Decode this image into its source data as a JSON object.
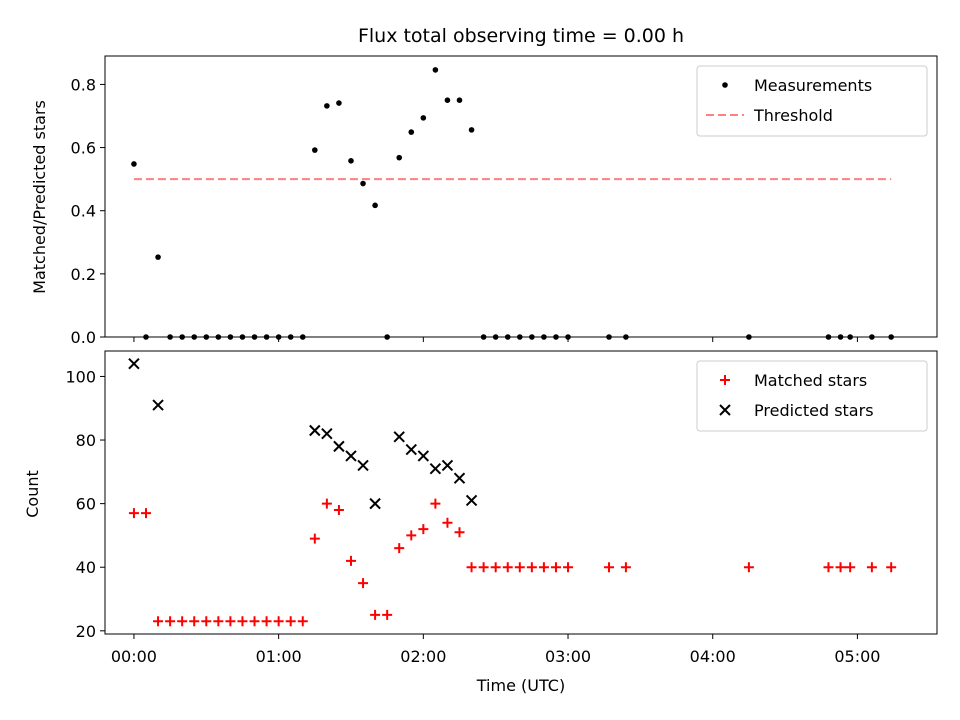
{
  "chart_data": [
    {
      "type": "scatter",
      "title": "Flux total observing time = 0.00 h",
      "xlabel": "",
      "ylabel": "Matched/Predicted stars",
      "ylim": [
        0,
        0.89
      ],
      "yticks": [
        0.0,
        0.2,
        0.4,
        0.6,
        0.8
      ],
      "ytick_labels": [
        "0.0",
        "0.2",
        "0.4",
        "0.6",
        "0.8"
      ],
      "legend_position": "top-right",
      "series": [
        {
          "name": "Measurements",
          "marker": "dot",
          "color": "#000000",
          "x": [
            "00:00",
            "00:05",
            "00:10",
            "00:15",
            "00:20",
            "00:25",
            "00:30",
            "00:35",
            "00:40",
            "00:45",
            "00:50",
            "00:55",
            "01:00",
            "01:05",
            "01:10",
            "01:15",
            "01:20",
            "01:25",
            "01:30",
            "01:35",
            "01:40",
            "01:45",
            "01:50",
            "01:55",
            "02:00",
            "02:05",
            "02:10",
            "02:15",
            "02:20",
            "02:25",
            "02:30",
            "02:35",
            "02:40",
            "02:45",
            "02:50",
            "02:55",
            "03:00",
            "03:17",
            "03:24",
            "04:15",
            "04:48",
            "04:53",
            "04:57",
            "05:06",
            "05:14"
          ],
          "values": [
            0.548,
            0.0,
            0.253,
            0.0,
            0.0,
            0.0,
            0.0,
            0.0,
            0.0,
            0.0,
            0.0,
            0.0,
            0.0,
            0.0,
            0.0,
            0.592,
            0.732,
            0.741,
            0.558,
            0.486,
            0.417,
            0.0,
            0.568,
            0.649,
            0.694,
            0.846,
            0.75,
            0.75,
            0.656,
            0.0,
            0.0,
            0.0,
            0.0,
            0.0,
            0.0,
            0.0,
            0.0,
            0.0,
            0.0,
            0.0,
            0.0,
            0.0,
            0.0,
            0.0,
            0.0
          ]
        },
        {
          "name": "Threshold",
          "style": "dashed-line",
          "color": "#ff8080",
          "x": [
            "00:00",
            "05:14"
          ],
          "values": [
            0.5,
            0.5
          ]
        }
      ]
    },
    {
      "type": "scatter",
      "title": "",
      "xlabel": "Time (UTC)",
      "ylabel": "Count",
      "ylim": [
        19,
        108
      ],
      "yticks": [
        20,
        40,
        60,
        80,
        100
      ],
      "ytick_labels": [
        "20",
        "40",
        "60",
        "80",
        "100"
      ],
      "xticks": [
        "00:00",
        "01:00",
        "02:00",
        "03:00",
        "04:00",
        "05:00"
      ],
      "legend_position": "top-right",
      "series": [
        {
          "name": "Matched stars",
          "marker": "plus",
          "color": "#ff0000",
          "x": [
            "00:00",
            "00:05",
            "00:10",
            "00:15",
            "00:20",
            "00:25",
            "00:30",
            "00:35",
            "00:40",
            "00:45",
            "00:50",
            "00:55",
            "01:00",
            "01:05",
            "01:10",
            "01:15",
            "01:20",
            "01:25",
            "01:30",
            "01:35",
            "01:40",
            "01:45",
            "01:50",
            "01:55",
            "02:00",
            "02:05",
            "02:10",
            "02:15",
            "02:20",
            "02:25",
            "02:30",
            "02:35",
            "02:40",
            "02:45",
            "02:50",
            "02:55",
            "03:00",
            "03:17",
            "03:24",
            "04:15",
            "04:48",
            "04:53",
            "04:57",
            "05:06",
            "05:14"
          ],
          "values": [
            57,
            57,
            23,
            23,
            23,
            23,
            23,
            23,
            23,
            23,
            23,
            23,
            23,
            23,
            23,
            49,
            60,
            58,
            42,
            35,
            25,
            25,
            46,
            50,
            52,
            60,
            54,
            51,
            40,
            40,
            40,
            40,
            40,
            40,
            40,
            40,
            40,
            40,
            40,
            40,
            40,
            40,
            40,
            40,
            40
          ]
        },
        {
          "name": "Predicted stars",
          "marker": "x",
          "color": "#000000",
          "x": [
            "00:00",
            "00:10",
            "01:15",
            "01:20",
            "01:25",
            "01:30",
            "01:35",
            "01:40",
            "01:50",
            "01:55",
            "02:00",
            "02:05",
            "02:10",
            "02:15",
            "02:20"
          ],
          "values": [
            104,
            91,
            83,
            82,
            78,
            75,
            72,
            60,
            81,
            77,
            75,
            71,
            72,
            68,
            61
          ]
        }
      ]
    }
  ]
}
